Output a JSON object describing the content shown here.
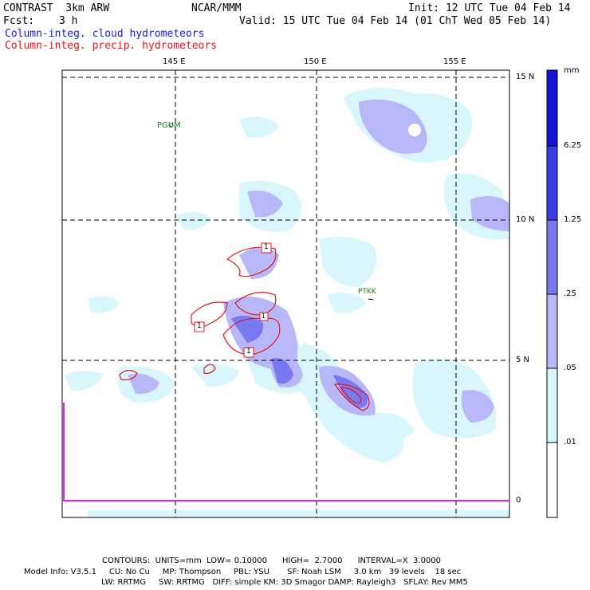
{
  "header": {
    "model": "CONTRAST  3km ARW",
    "agency": "NCAR/MMM",
    "init": "Init: 12 UTC Tue 04 Feb 14",
    "fcst_label": "Fcst:",
    "fcst_value": "3 h",
    "valid": "Valid: 15 UTC Tue 04 Feb 14 (01 ChT Wed 05 Feb 14)",
    "field1": "Column-integ. cloud hydrometeors",
    "field2": "Column-integ. precip. hydrometeors"
  },
  "axes": {
    "lon_labels": [
      "145 E",
      "150 E",
      "155 E"
    ],
    "lat_labels": [
      "15 N",
      "10 N",
      "5 N"
    ],
    "panel_zero": "0"
  },
  "stations": [
    {
      "name": "PGUM"
    },
    {
      "name": "PTKK"
    }
  ],
  "contour_labels": [
    "1",
    "1",
    "1",
    "1"
  ],
  "colorbar": {
    "unit": "mm",
    "levels": [
      "6.25",
      "1.25",
      ".25",
      ".05",
      ".01"
    ],
    "colors": [
      "#1414d8",
      "#3c3ce8",
      "#7a7af0",
      "#b8b8f8",
      "#d8f6fc",
      "#ffffff"
    ]
  },
  "footer": {
    "contours": "CONTOURS:  UNITS=mm  LOW= 0.10000      HIGH=  2.7000      INTERVAL=X  3.0000",
    "model_info_1": "Model Info: V3.5.1     CU: No Cu     MP: Thompson     PBL: YSU       SF: Noah LSM     3.0 km   39 levels    18 sec",
    "model_info_2": "LW: RRTMG     SW: RRTMG   DIFF: simple KM: 3D Smagor DAMP: Rayleigh3   SFLAY: Rev MM5"
  }
}
